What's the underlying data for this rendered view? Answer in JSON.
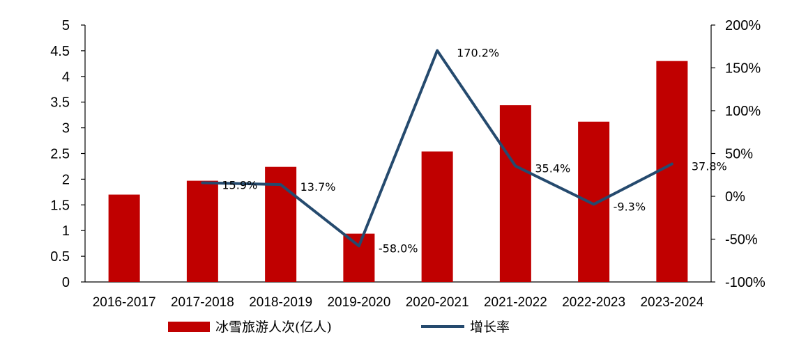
{
  "chart_data": {
    "type": "bar",
    "categories": [
      "2016-2017",
      "2017-2018",
      "2018-2019",
      "2019-2020",
      "2020-2021",
      "2021-2022",
      "2022-2023",
      "2023-2024"
    ],
    "series": [
      {
        "name": "冰雪旅游人次(亿人)",
        "type": "bar",
        "axis": "left",
        "color": "#c00000",
        "values": [
          1.7,
          1.97,
          2.24,
          0.94,
          2.54,
          3.44,
          3.12,
          4.3
        ]
      },
      {
        "name": "增长率",
        "type": "line",
        "axis": "right",
        "color": "#254a6e",
        "values": [
          null,
          15.9,
          13.7,
          -58.0,
          170.2,
          35.4,
          -9.3,
          37.8
        ],
        "labels": [
          "",
          "15.9%",
          "13.7%",
          "-58.0%",
          "170.2%",
          "35.4%",
          "-9.3%",
          "37.8%"
        ]
      }
    ],
    "y_left": {
      "ylim": [
        0,
        5
      ],
      "ticks": [
        "0",
        "0.5",
        "1",
        "1.5",
        "2",
        "2.5",
        "3",
        "3.5",
        "4",
        "4.5",
        "5"
      ]
    },
    "y_right": {
      "ylim": [
        -100,
        200
      ],
      "ticks": [
        "-100%",
        "-50%",
        "0%",
        "50%",
        "100%",
        "150%",
        "200%"
      ]
    },
    "grid": false,
    "legend_position": "bottom-center"
  }
}
